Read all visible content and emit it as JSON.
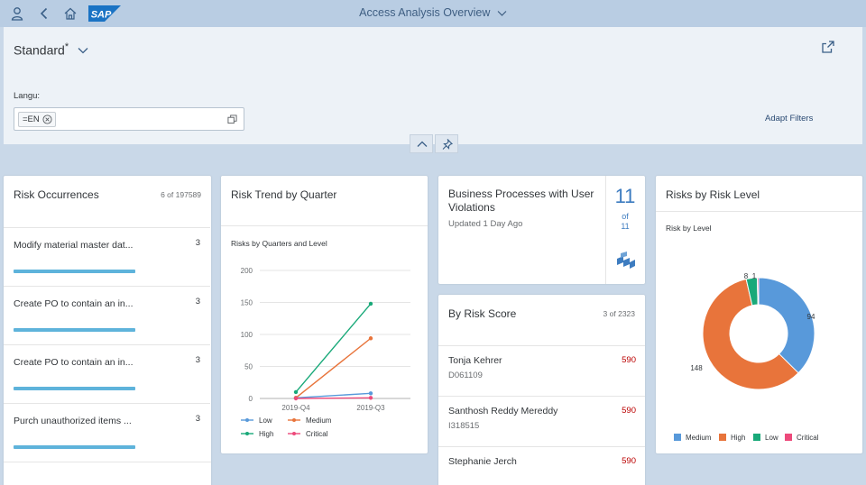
{
  "shell": {
    "logo_text": "SAP",
    "title": "Access Analysis Overview",
    "colors": {
      "bar": "#b9cde3",
      "logo": "#1a73c4"
    }
  },
  "header": {
    "variant": "Standard",
    "variant_modified": "*",
    "filter_label": "Langu:",
    "filter_token": "=EN",
    "adapt_filters": "Adapt Filters"
  },
  "cards": {
    "risk_occurrences": {
      "title": "Risk Occurrences",
      "count": "6 of 197589",
      "items": [
        {
          "label": "Modify material master dat...",
          "value": "3",
          "bar_fraction": 1.0
        },
        {
          "label": "Create PO to contain an in...",
          "value": "3",
          "bar_fraction": 1.0
        },
        {
          "label": "Create PO to contain an in...",
          "value": "3",
          "bar_fraction": 1.0
        },
        {
          "label": "Purch unauthorized items ...",
          "value": "3",
          "bar_fraction": 1.0
        }
      ],
      "bar_color": "#5eb3db"
    },
    "risk_trend": {
      "title": "Risk Trend by Quarter",
      "subtitle": "Risks by Quarters and Level"
    },
    "business_processes": {
      "title": "Business Processes with User Violations",
      "updated": "Updated 1 Day Ago",
      "value": "11",
      "of_text": "of",
      "total": "11"
    },
    "risk_score": {
      "title": "By Risk Score",
      "count": "3 of 2323",
      "rows": [
        {
          "name": "Tonja Kehrer",
          "id": "D061109",
          "score": "590"
        },
        {
          "name": "Santhosh Reddy Mereddy",
          "id": "I318515",
          "score": "590"
        },
        {
          "name": "Stephanie Jerch",
          "id": "",
          "score": "590"
        }
      ]
    },
    "risk_level": {
      "title": "Risks by Risk Level",
      "subtitle": "Risk by Level"
    }
  },
  "chart_data": [
    {
      "type": "line",
      "title": "Risks by Quarters and Level",
      "categories": [
        "2019-Q4",
        "2019-Q3"
      ],
      "ylim": [
        0,
        200
      ],
      "yticks": [
        0,
        50,
        100,
        150,
        200
      ],
      "grid": true,
      "legend_position": "bottom",
      "series": [
        {
          "name": "Low",
          "values": [
            1,
            8
          ],
          "color": "#5899da"
        },
        {
          "name": "Medium",
          "values": [
            1,
            94
          ],
          "color": "#e8743b"
        },
        {
          "name": "High",
          "values": [
            10,
            148
          ],
          "color": "#19a979"
        },
        {
          "name": "Critical",
          "values": [
            0,
            1
          ],
          "color": "#ed4a7b"
        }
      ]
    },
    {
      "type": "pie",
      "donut": true,
      "title": "Risk by Level",
      "legend_position": "bottom",
      "slices": [
        {
          "name": "Medium",
          "value": 94,
          "color": "#5899da"
        },
        {
          "name": "High",
          "value": 148,
          "color": "#e8743b"
        },
        {
          "name": "Low",
          "value": 8,
          "color": "#19a979"
        },
        {
          "name": "Critical",
          "value": 1,
          "color": "#ed4a7b"
        }
      ]
    }
  ]
}
